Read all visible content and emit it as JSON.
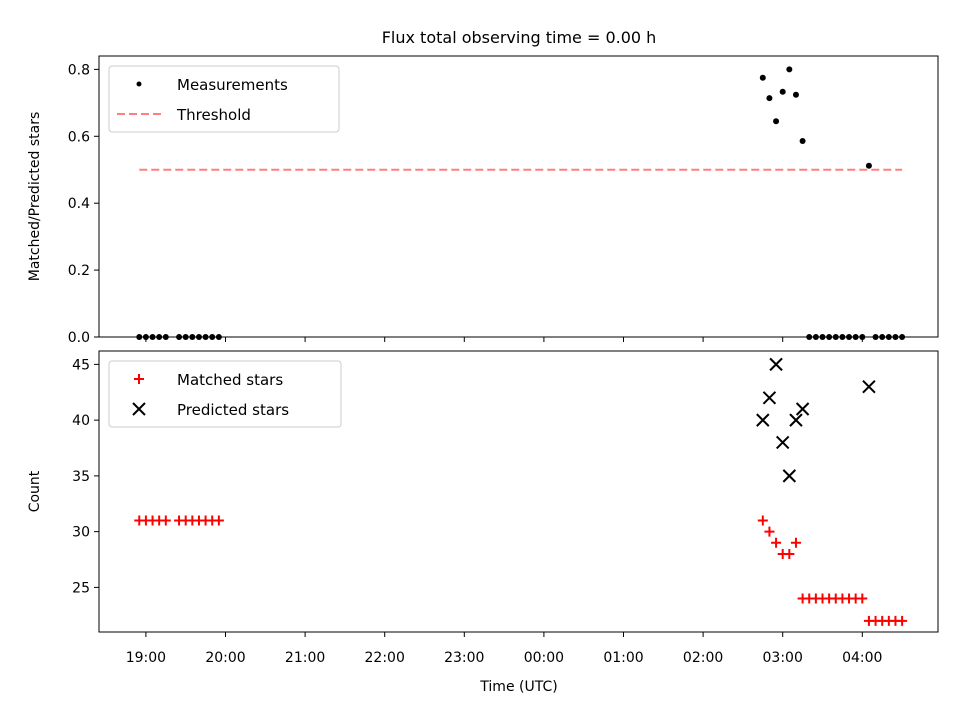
{
  "title": "Flux total observing time = 0.00 h",
  "xlabel": "Time (UTC)",
  "x_ticks": [
    "19:00",
    "20:00",
    "21:00",
    "22:00",
    "23:00",
    "00:00",
    "01:00",
    "02:00",
    "03:00",
    "04:00"
  ],
  "chart_data": [
    {
      "type": "scatter",
      "ylabel": "Matched/Predicted stars",
      "ylim": [
        0,
        0.84
      ],
      "y_ticks": [
        "0.0",
        "0.2",
        "0.4",
        "0.6",
        "0.8"
      ],
      "legend_position": "upper-left",
      "series": [
        {
          "name": "Measurements",
          "marker": "dot",
          "color": "#000000",
          "points": [
            [
              "18:55",
              0
            ],
            [
              "19:00",
              0
            ],
            [
              "19:05",
              0
            ],
            [
              "19:10",
              0
            ],
            [
              "19:15",
              0
            ],
            [
              "19:25",
              0
            ],
            [
              "19:30",
              0
            ],
            [
              "19:35",
              0
            ],
            [
              "19:40",
              0
            ],
            [
              "19:45",
              0
            ],
            [
              "19:50",
              0
            ],
            [
              "19:55",
              0
            ],
            [
              "02:45",
              0.775
            ],
            [
              "02:50",
              0.714
            ],
            [
              "02:55",
              0.645
            ],
            [
              "03:00",
              0.733
            ],
            [
              "03:05",
              0.8
            ],
            [
              "03:10",
              0.724
            ],
            [
              "03:15",
              0.586
            ],
            [
              "03:20",
              0
            ],
            [
              "03:25",
              0
            ],
            [
              "03:30",
              0
            ],
            [
              "03:35",
              0
            ],
            [
              "03:40",
              0
            ],
            [
              "03:45",
              0
            ],
            [
              "03:50",
              0
            ],
            [
              "03:55",
              0
            ],
            [
              "04:00",
              0
            ],
            [
              "04:05",
              0.512
            ],
            [
              "04:10",
              0
            ],
            [
              "04:15",
              0
            ],
            [
              "04:20",
              0
            ],
            [
              "04:25",
              0
            ],
            [
              "04:30",
              0
            ]
          ]
        },
        {
          "name": "Threshold",
          "marker": "dashed-line",
          "color": "#ff7f7f",
          "points": [
            [
              "18:55",
              0.5
            ],
            [
              "04:30",
              0.5
            ]
          ]
        }
      ]
    },
    {
      "type": "scatter",
      "ylabel": "Count",
      "ylim": [
        21,
        46.2
      ],
      "y_ticks": [
        "25",
        "30",
        "35",
        "40",
        "45"
      ],
      "legend_position": "upper-left",
      "series": [
        {
          "name": "Matched stars",
          "marker": "plus",
          "color": "#ff0000",
          "points": [
            [
              "18:55",
              31
            ],
            [
              "19:00",
              31
            ],
            [
              "19:05",
              31
            ],
            [
              "19:10",
              31
            ],
            [
              "19:15",
              31
            ],
            [
              "19:25",
              31
            ],
            [
              "19:30",
              31
            ],
            [
              "19:35",
              31
            ],
            [
              "19:40",
              31
            ],
            [
              "19:45",
              31
            ],
            [
              "19:50",
              31
            ],
            [
              "19:55",
              31
            ],
            [
              "02:45",
              31
            ],
            [
              "02:50",
              30
            ],
            [
              "02:55",
              29
            ],
            [
              "03:00",
              28
            ],
            [
              "03:05",
              28
            ],
            [
              "03:10",
              29
            ],
            [
              "03:15",
              24
            ],
            [
              "03:20",
              24
            ],
            [
              "03:25",
              24
            ],
            [
              "03:30",
              24
            ],
            [
              "03:35",
              24
            ],
            [
              "03:40",
              24
            ],
            [
              "03:45",
              24
            ],
            [
              "03:50",
              24
            ],
            [
              "03:55",
              24
            ],
            [
              "04:00",
              24
            ],
            [
              "04:05",
              22
            ],
            [
              "04:10",
              22
            ],
            [
              "04:15",
              22
            ],
            [
              "04:20",
              22
            ],
            [
              "04:25",
              22
            ],
            [
              "04:30",
              22
            ]
          ]
        },
        {
          "name": "Predicted stars",
          "marker": "cross",
          "color": "#000000",
          "points": [
            [
              "02:45",
              40
            ],
            [
              "02:50",
              42
            ],
            [
              "02:55",
              45
            ],
            [
              "03:00",
              38
            ],
            [
              "03:05",
              35
            ],
            [
              "03:10",
              40
            ],
            [
              "03:15",
              41
            ],
            [
              "04:05",
              43
            ]
          ]
        }
      ]
    }
  ]
}
